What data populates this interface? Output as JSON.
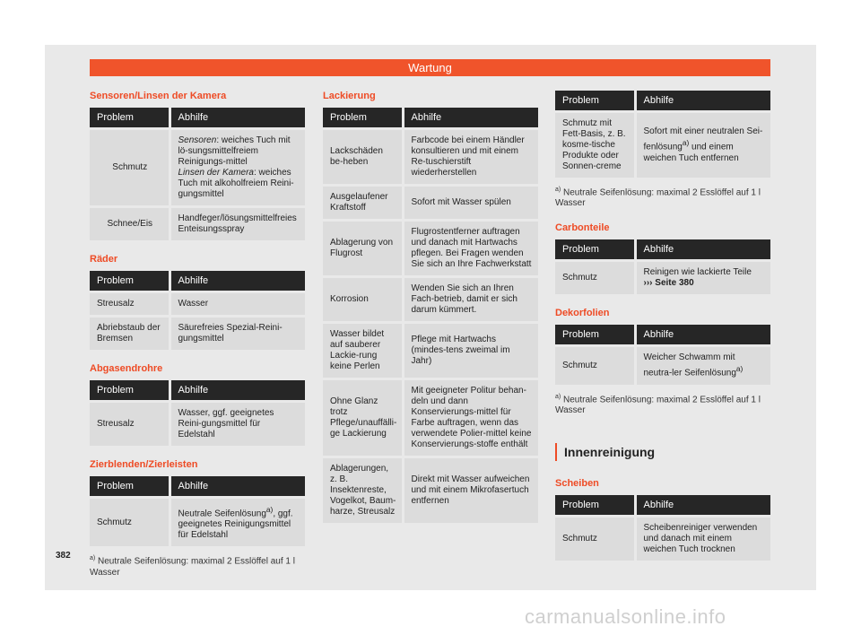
{
  "header_title": "Wartung",
  "col_header": {
    "problem": "Problem",
    "remedy": "Abhilfe"
  },
  "left": {
    "s1_title": "Sensoren/Linsen der Kamera",
    "s1_rows": [
      {
        "p": "Schmutz",
        "r_a_label": "Sensoren",
        "r_a_text": ": weiches Tuch mit lö-sungsmittelfreiem Reinigungs-mittel",
        "r_b_label": "Linsen der Kamera",
        "r_b_text": ": weiches Tuch mit alkoholfreiem Reini-gungsmittel"
      },
      {
        "p": "Schnee/Eis",
        "r": "Handfeger/lösungsmittelfreies Enteisungsspray"
      }
    ],
    "s2_title": "Räder",
    "s2_rows": [
      {
        "p": "Streusalz",
        "r": "Wasser"
      },
      {
        "p": "Abriebstaub der Bremsen",
        "r": "Säurefreies Spezial-Reini-gungsmittel"
      }
    ],
    "s3_title": "Abgasendrohre",
    "s3_rows": [
      {
        "p": "Streusalz",
        "r": "Wasser, ggf. geeignetes Reini-gungsmittel für Edelstahl"
      }
    ],
    "s4_title": "Zierblenden/Zierleisten",
    "s4_rows": [
      {
        "p": "Schmutz",
        "r1": "Neutrale Seifenlösung",
        "sup": "a)",
        "r2": ", ggf. geeignetes Reinigungsmittel für Edelstahl"
      }
    ],
    "footnote_mark": "a)",
    "footnote_text": "Neutrale Seifenlösung: maximal 2 Esslöffel auf 1 l Wasser"
  },
  "middle": {
    "title": "Lackierung",
    "rows": [
      {
        "p": "Lackschäden be-heben",
        "r": "Farbcode bei einem Händler konsultieren und mit einem Re-tuschierstift wiederherstellen"
      },
      {
        "p": "Ausgelaufener Kraftstoff",
        "r": "Sofort mit Wasser spülen"
      },
      {
        "p": "Ablagerung von Flugrost",
        "r": "Flugrostentferner auftragen und danach mit Hartwachs pflegen. Bei Fragen wenden Sie sich an Ihre Fachwerkstatt"
      },
      {
        "p": "Korrosion",
        "r": "Wenden Sie sich an Ihren Fach-betrieb, damit er sich darum kümmert."
      },
      {
        "p": "Wasser bildet auf sauberer Lackie-rung keine Perlen",
        "r": "Pflege mit Hartwachs (mindes-tens zweimal im Jahr)"
      },
      {
        "p": "Ohne Glanz trotz Pflege/unauffälli-ge Lackierung",
        "r": "Mit geeigneter Politur behan-deln und dann Konservierungs-mittel für Farbe auftragen, wenn das verwendete Polier-mittel keine Konservierungs-stoffe enthält"
      },
      {
        "p": "Ablagerungen, z. B. Insektenreste, Vogelkot, Baum-harze, Streusalz",
        "r": "Direkt mit Wasser aufweichen und mit einem Mikrofasertuch entfernen"
      }
    ]
  },
  "right": {
    "t1_rows": [
      {
        "p": "Schmutz mit Fett-Basis, z. B. kosme-tische Produkte oder Sonnen-creme",
        "r1": "Sofort mit einer neutralen Sei-fenlösung",
        "sup": "a)",
        "r2": " und einem weichen Tuch entfernen"
      }
    ],
    "footnote1_mark": "a)",
    "footnote1_text": "Neutrale Seifenlösung: maximal 2 Esslöffel auf 1 l Wasser",
    "s2_title": "Carbonteile",
    "s2_rows": [
      {
        "p": "Schmutz",
        "r": "Reinigen wie lackierte Teile",
        "link_arrow": "›››",
        "link_text": "Seite 380"
      }
    ],
    "s3_title": "Dekorfolien",
    "s3_rows": [
      {
        "p": "Schmutz",
        "r1": "Weicher Schwamm mit neutra-ler Seifenlösung",
        "sup": "a)"
      }
    ],
    "footnote2_mark": "a)",
    "footnote2_text": "Neutrale Seifenlösung: maximal 2 Esslöffel auf 1 l Wasser",
    "inner_title": "Innenreinigung",
    "s4_title": "Scheiben",
    "s4_rows": [
      {
        "p": "Schmutz",
        "r": "Scheibenreiniger verwenden und danach mit einem weichen Tuch trocknen"
      }
    ]
  },
  "page_number": "382",
  "watermark": "carmanualsonline.info",
  "colors": {
    "accent": "#f0542b",
    "header_bg": "#262626",
    "cell_bg": "#dcdcdc",
    "page_bg": "#e9e9e9"
  }
}
